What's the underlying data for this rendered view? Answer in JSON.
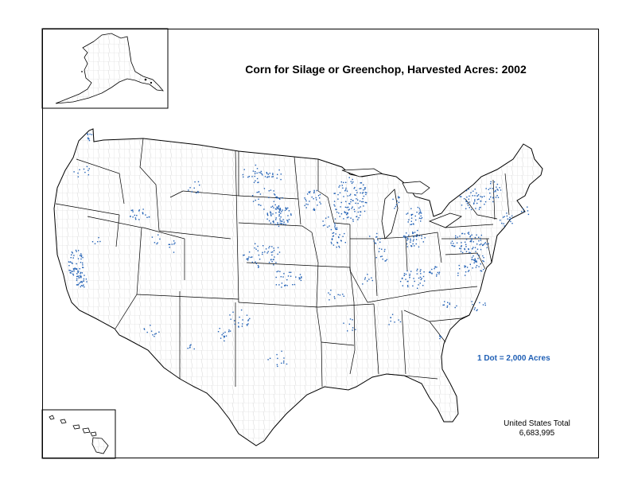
{
  "map": {
    "title": "Corn for Silage or Greenchop, Harvested Acres:  2002",
    "legend": "1 Dot = 2,000 Acres",
    "total_label": "United States Total",
    "total_value": "6,683,995",
    "colors": {
      "dots": "#1f5fb5",
      "borders": "#000000",
      "county_lines": "#b4b4b4",
      "background": "#ffffff"
    },
    "insets": [
      "Alaska",
      "Hawaii"
    ]
  }
}
